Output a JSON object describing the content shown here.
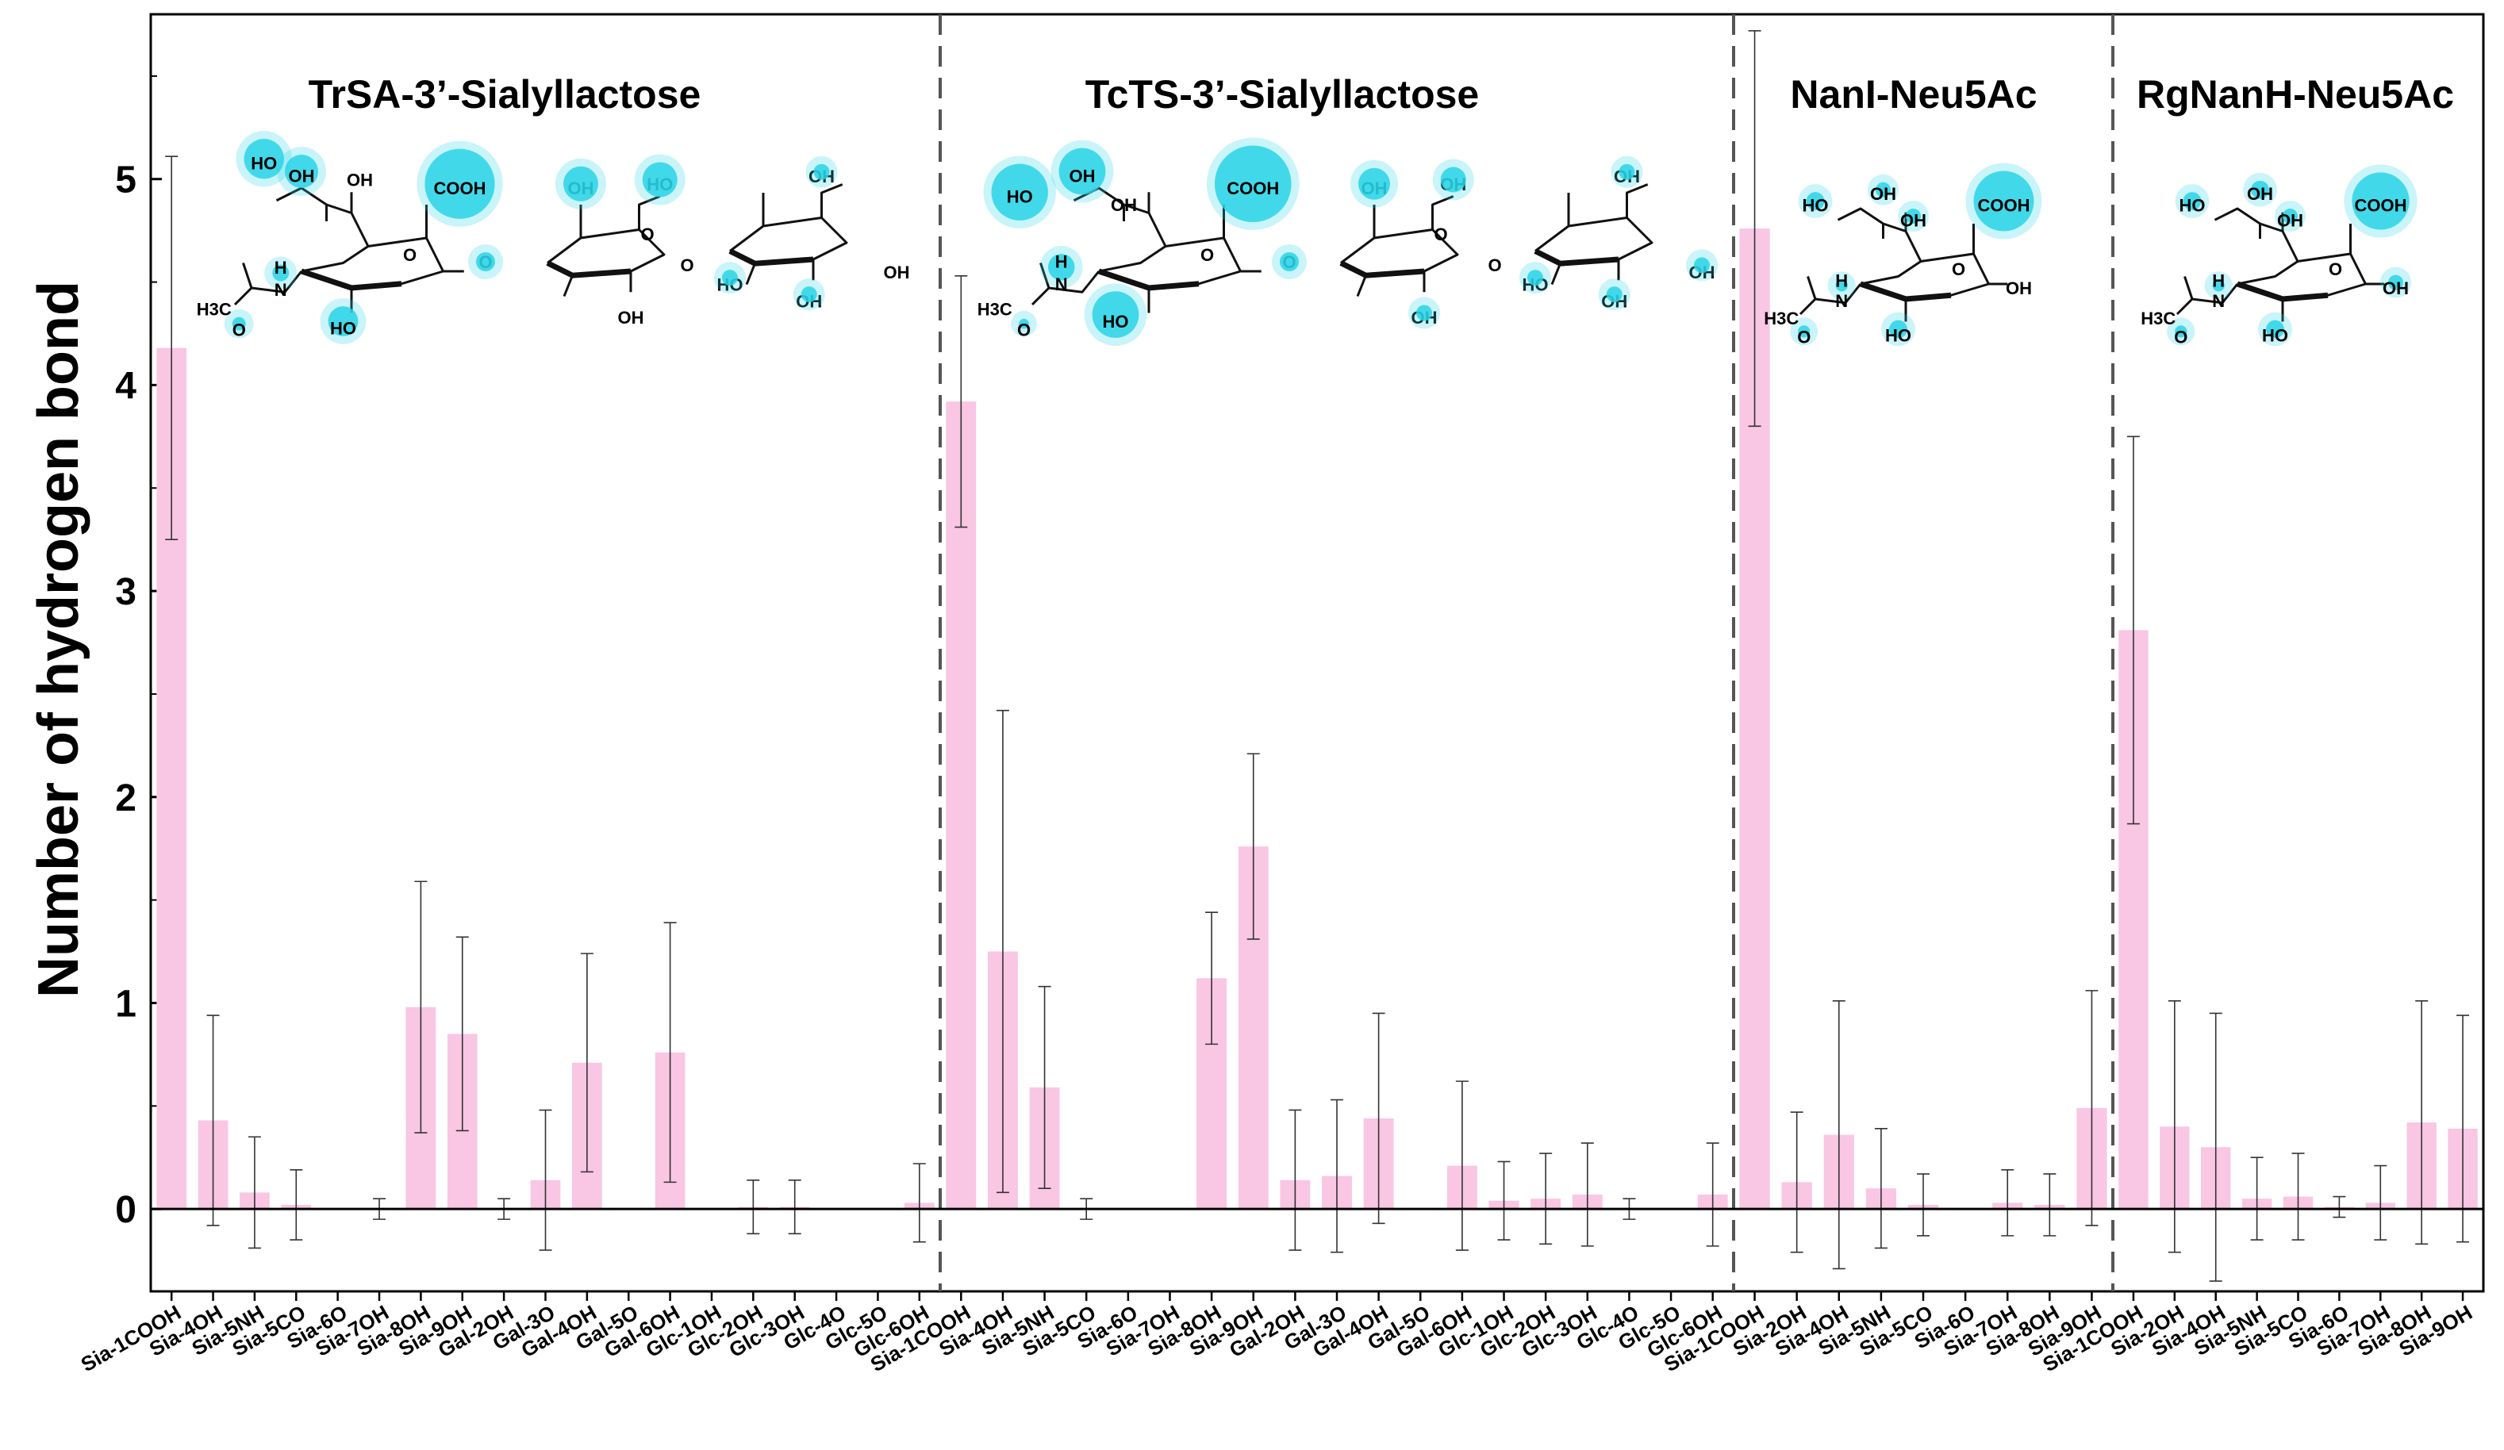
{
  "chart_data": {
    "type": "bar",
    "ylabel": "Number of hydrogen bond",
    "xlabel": "",
    "ylim": [
      -0.4,
      5.8
    ],
    "yticks": [
      0,
      1,
      2,
      3,
      4,
      5
    ],
    "colors": {
      "bar": "#f9c6e4",
      "glow": "#29d3e8",
      "errorbar": "#333333",
      "axis": "#000000",
      "divider": "#555555"
    },
    "panels": [
      {
        "title": "TrSA-3’-Sialyllactose",
        "categories": [
          "Sia-1COOH",
          "Sia-4OH",
          "Sia-5NH",
          "Sia-5CO",
          "Sia-6O",
          "Sia-7OH",
          "Sia-8OH",
          "Sia-9OH",
          "Gal-2OH",
          "Gal-3O",
          "Gal-4OH",
          "Gal-5O",
          "Gal-6OH",
          "Glc-1OH",
          "Glc-2OH",
          "Glc-3OH",
          "Glc-4O",
          "Glc-5O",
          "Glc-6OH"
        ],
        "values": [
          4.18,
          0.43,
          0.08,
          0.02,
          0.0,
          0.0,
          0.98,
          0.85,
          0.0,
          0.14,
          0.71,
          0.0,
          0.76,
          0.0,
          0.01,
          0.01,
          0.0,
          0.0,
          0.03
        ],
        "errors": [
          0.93,
          0.51,
          0.27,
          0.17,
          0.0,
          0.05,
          0.61,
          0.47,
          0.05,
          0.34,
          0.53,
          0.0,
          0.63,
          0.0,
          0.13,
          0.13,
          0.0,
          0.0,
          0.19
        ]
      },
      {
        "title": "TcTS-3’-Sialyllactose",
        "categories": [
          "Sia-1COOH",
          "Sia-4OH",
          "Sia-5NH",
          "Sia-5CO",
          "Sia-6O",
          "Sia-7OH",
          "Sia-8OH",
          "Sia-9OH",
          "Gal-2OH",
          "Gal-3O",
          "Gal-4OH",
          "Gal-5O",
          "Gal-6OH",
          "Glc-1OH",
          "Glc-2OH",
          "Glc-3OH",
          "Glc-4O",
          "Glc-5O",
          "Glc-6OH"
        ],
        "values": [
          3.92,
          1.25,
          0.59,
          0.0,
          0.0,
          0.0,
          1.12,
          1.76,
          0.14,
          0.16,
          0.44,
          0.0,
          0.21,
          0.04,
          0.05,
          0.07,
          0.0,
          0.0,
          0.07
        ],
        "errors": [
          0.61,
          1.17,
          0.49,
          0.05,
          0.0,
          0.0,
          0.32,
          0.45,
          0.34,
          0.37,
          0.51,
          0.0,
          0.41,
          0.19,
          0.22,
          0.25,
          0.05,
          0.0,
          0.25
        ]
      },
      {
        "title": "NanI-Neu5Ac",
        "categories": [
          "Sia-1COOH",
          "Sia-2OH",
          "Sia-4OH",
          "Sia-5NH",
          "Sia-5CO",
          "Sia-6O",
          "Sia-7OH",
          "Sia-8OH",
          "Sia-9OH"
        ],
        "values": [
          4.76,
          0.13,
          0.36,
          0.1,
          0.02,
          0.0,
          0.03,
          0.02,
          0.49
        ],
        "errors": [
          0.96,
          0.34,
          0.65,
          0.29,
          0.15,
          0.0,
          0.16,
          0.15,
          0.57
        ]
      },
      {
        "title": "RgNanH-Neu5Ac",
        "categories": [
          "Sia-1COOH",
          "Sia-2OH",
          "Sia-4OH",
          "Sia-5NH",
          "Sia-5CO",
          "Sia-6O",
          "Sia-7OH",
          "Sia-8OH",
          "Sia-9OH"
        ],
        "values": [
          2.81,
          0.4,
          0.3,
          0.05,
          0.06,
          0.01,
          0.03,
          0.42,
          0.39
        ],
        "errors": [
          0.94,
          0.61,
          0.65,
          0.2,
          0.21,
          0.05,
          0.18,
          0.59,
          0.55
        ]
      }
    ],
    "structures": {
      "sialyllactose_labels": [
        "HO",
        "OH",
        "OH",
        "COOH",
        "O",
        "OH",
        "OH",
        "O",
        "OH",
        "H",
        "N",
        "H3C",
        "O",
        "HO",
        "OH",
        "O",
        "HO",
        "OH",
        "OH"
      ],
      "neu5ac_labels": [
        "HO",
        "OH",
        "OH",
        "COOH",
        "O",
        "OH",
        "H",
        "N",
        "H3C",
        "O",
        "HO"
      ]
    }
  }
}
